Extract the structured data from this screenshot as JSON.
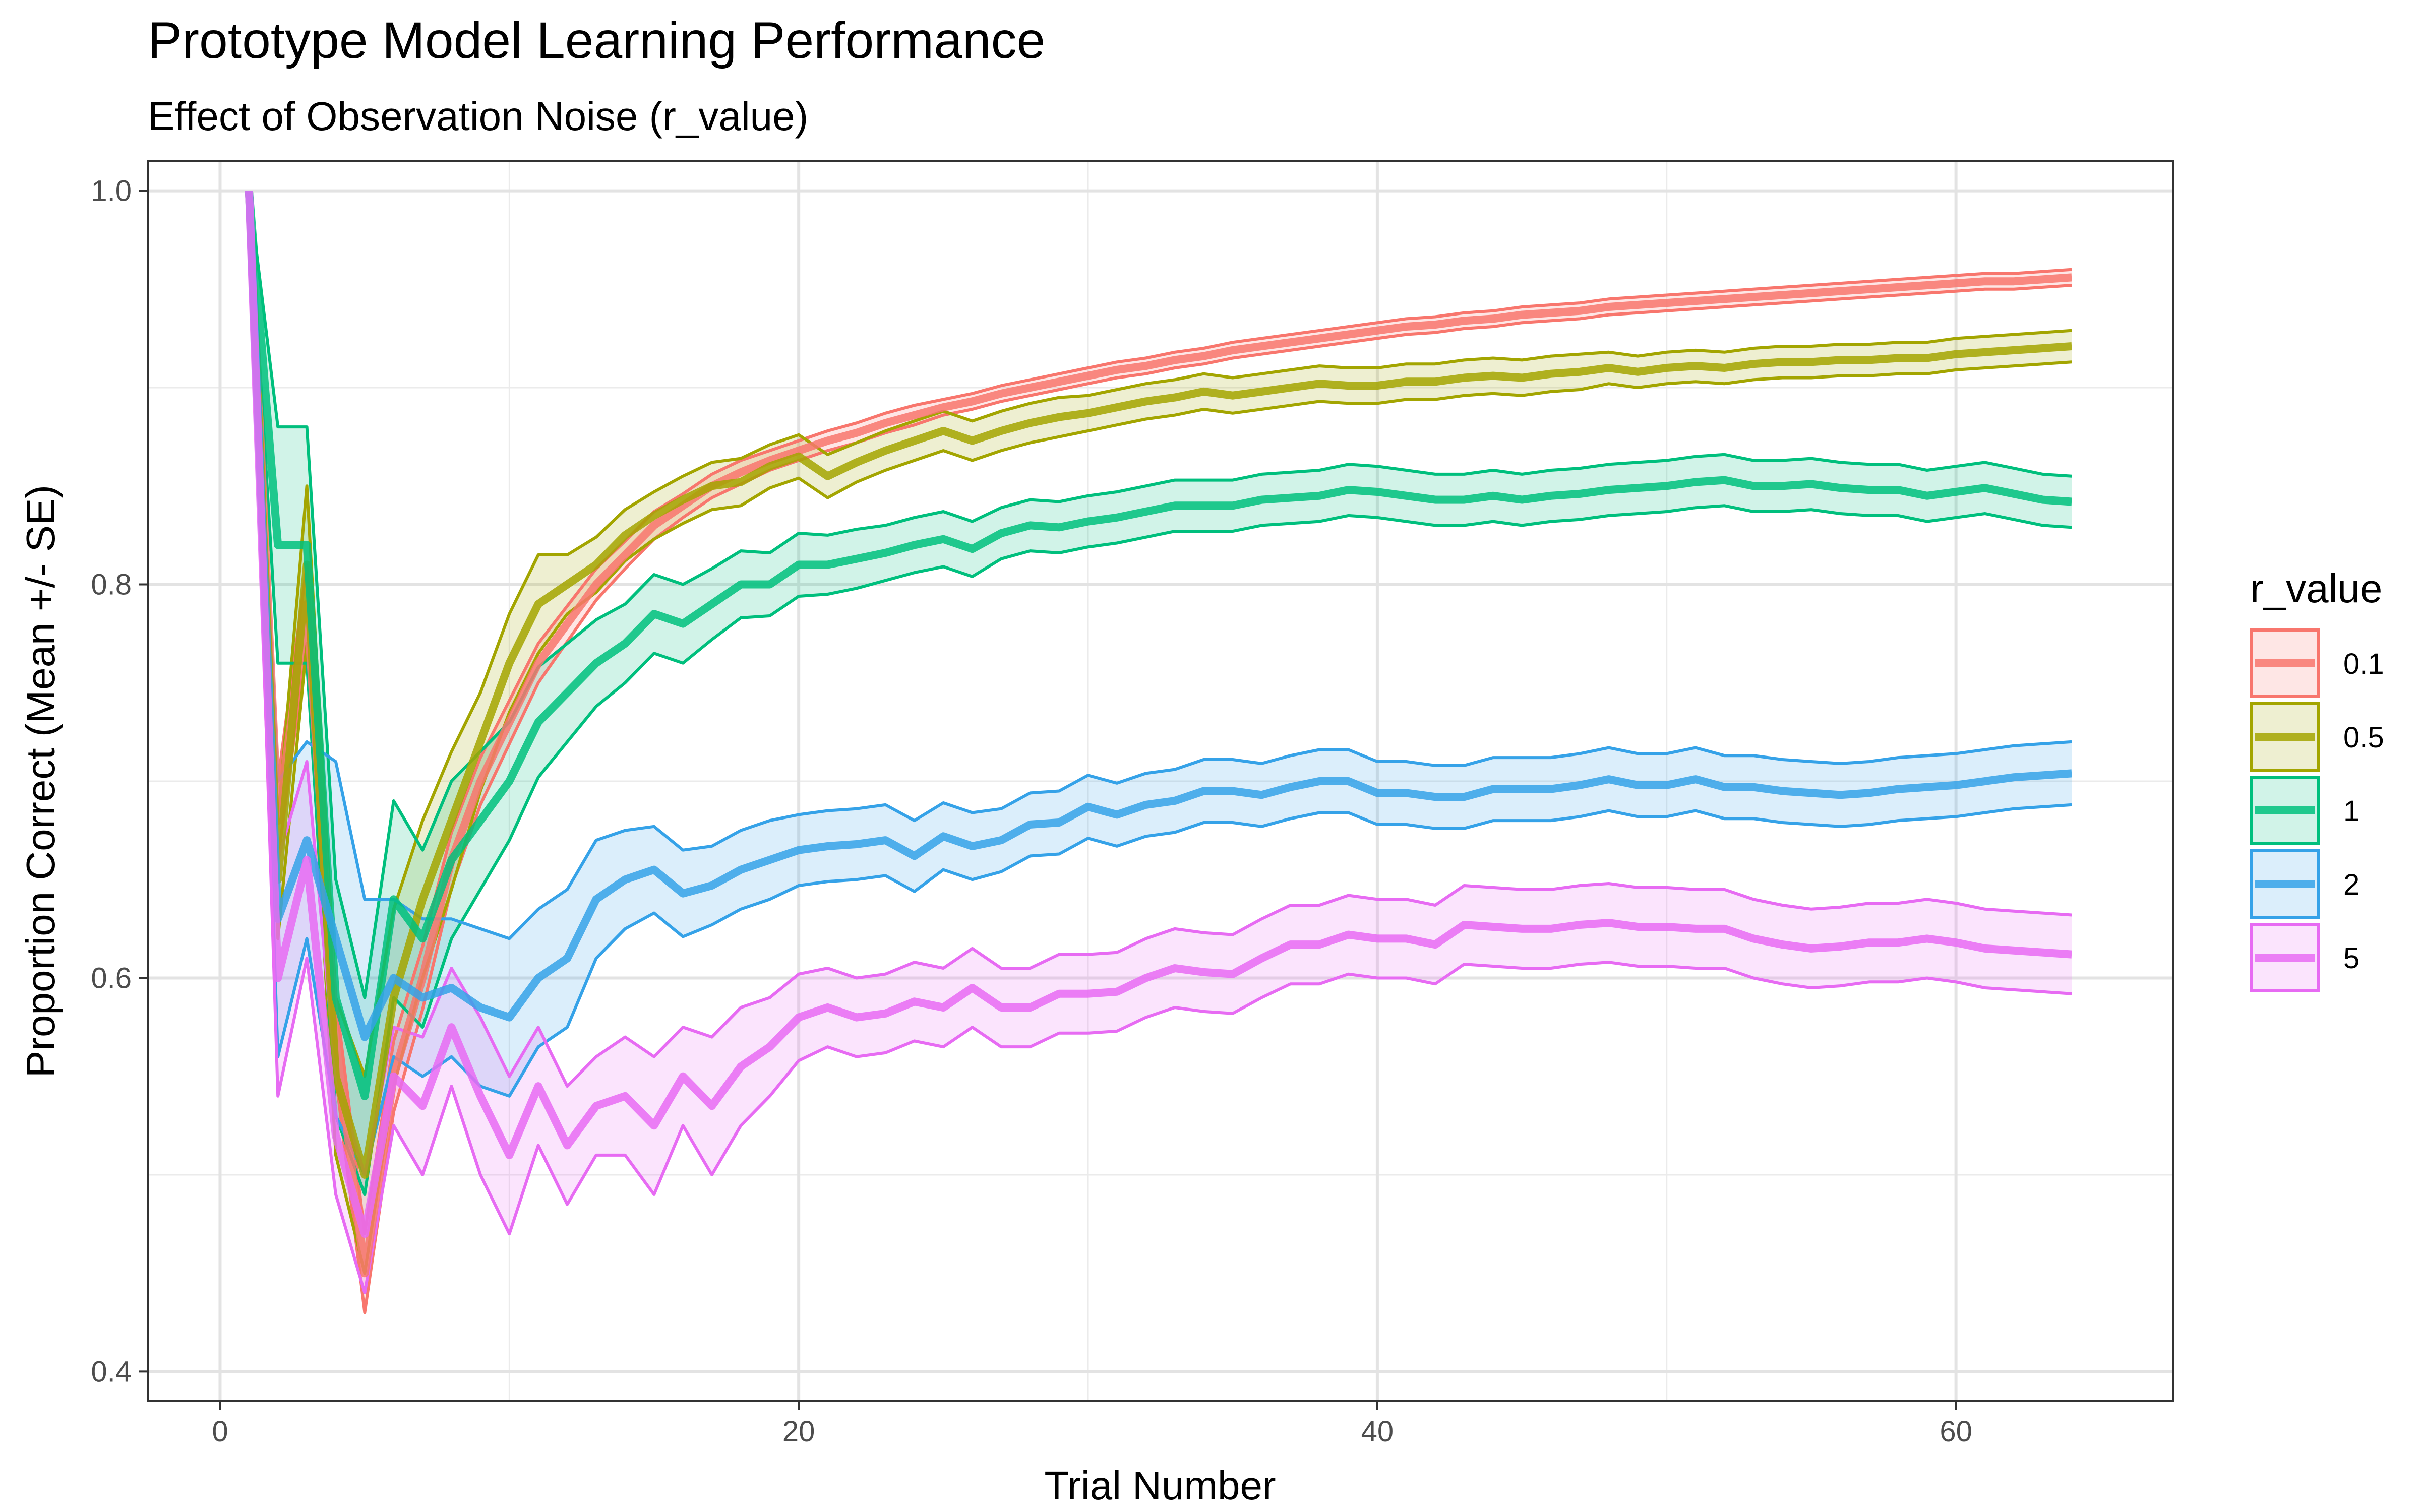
{
  "chart_data": {
    "type": "line",
    "title": "Prototype Model Learning Performance",
    "subtitle": "Effect of Observation Noise (r_value)",
    "xlabel": "Trial Number",
    "ylabel": "Proportion Correct (Mean +/- SE)",
    "xlim": [
      -2.5,
      67.5
    ],
    "ylim": [
      0.385,
      1.015
    ],
    "x_ticks": [
      0,
      20,
      40,
      60
    ],
    "x_tick_labels": [
      "0",
      "20",
      "40",
      "60"
    ],
    "y_ticks": [
      0.4,
      0.6,
      0.8,
      1.0
    ],
    "y_tick_labels": [
      "0.4",
      "0.6",
      "0.8",
      "1.0"
    ],
    "grid": true,
    "legend_title": "r_value",
    "legend_position": "right",
    "x": [
      1,
      2,
      3,
      4,
      5,
      6,
      7,
      8,
      9,
      10,
      11,
      12,
      13,
      14,
      15,
      16,
      17,
      18,
      19,
      20,
      21,
      22,
      23,
      24,
      25,
      26,
      27,
      28,
      29,
      30,
      31,
      32,
      33,
      34,
      35,
      36,
      37,
      38,
      39,
      40,
      41,
      42,
      43,
      44,
      45,
      46,
      47,
      48,
      49,
      50,
      51,
      52,
      53,
      54,
      55,
      56,
      57,
      58,
      59,
      60,
      61,
      62,
      63,
      64
    ],
    "series": [
      {
        "name": "0.1",
        "color": "#F8766D",
        "mean": [
          1.0,
          0.68,
          0.79,
          0.57,
          0.45,
          0.55,
          0.6,
          0.66,
          0.7,
          0.73,
          0.76,
          0.78,
          0.8,
          0.815,
          0.83,
          0.84,
          0.85,
          0.857,
          0.863,
          0.868,
          0.873,
          0.877,
          0.882,
          0.886,
          0.89,
          0.893,
          0.897,
          0.9,
          0.903,
          0.906,
          0.909,
          0.911,
          0.914,
          0.916,
          0.919,
          0.921,
          0.923,
          0.925,
          0.927,
          0.929,
          0.931,
          0.932,
          0.934,
          0.935,
          0.937,
          0.938,
          0.939,
          0.941,
          0.942,
          0.943,
          0.944,
          0.945,
          0.946,
          0.947,
          0.948,
          0.949,
          0.95,
          0.951,
          0.952,
          0.953,
          0.954,
          0.954,
          0.955,
          0.956
        ],
        "se": [
          0.0,
          0.02,
          0.02,
          0.02,
          0.02,
          0.018,
          0.016,
          0.014,
          0.012,
          0.011,
          0.01,
          0.009,
          0.008,
          0.007,
          0.007,
          0.006,
          0.006,
          0.006,
          0.005,
          0.005,
          0.005,
          0.005,
          0.005,
          0.005,
          0.004,
          0.004,
          0.004,
          0.004,
          0.004,
          0.004,
          0.004,
          0.004,
          0.004,
          0.004,
          0.004,
          0.004,
          0.004,
          0.004,
          0.004,
          0.004,
          0.004,
          0.004,
          0.004,
          0.004,
          0.004,
          0.004,
          0.004,
          0.004,
          0.004,
          0.004,
          0.004,
          0.004,
          0.004,
          0.004,
          0.004,
          0.004,
          0.004,
          0.004,
          0.004,
          0.004,
          0.004,
          0.004,
          0.004,
          0.004
        ]
      },
      {
        "name": "0.5",
        "color": "#A3A500",
        "mean": [
          1.0,
          0.65,
          0.81,
          0.55,
          0.5,
          0.59,
          0.64,
          0.68,
          0.72,
          0.76,
          0.79,
          0.8,
          0.81,
          0.825,
          0.835,
          0.843,
          0.85,
          0.852,
          0.86,
          0.865,
          0.855,
          0.862,
          0.868,
          0.873,
          0.878,
          0.873,
          0.878,
          0.882,
          0.885,
          0.887,
          0.89,
          0.893,
          0.895,
          0.898,
          0.896,
          0.898,
          0.9,
          0.902,
          0.901,
          0.901,
          0.903,
          0.903,
          0.905,
          0.906,
          0.905,
          0.907,
          0.908,
          0.91,
          0.908,
          0.91,
          0.911,
          0.91,
          0.912,
          0.913,
          0.913,
          0.914,
          0.914,
          0.915,
          0.915,
          0.917,
          0.918,
          0.919,
          0.92,
          0.921
        ],
        "se": [
          0.0,
          0.03,
          0.04,
          0.04,
          0.05,
          0.045,
          0.04,
          0.035,
          0.025,
          0.025,
          0.025,
          0.015,
          0.014,
          0.013,
          0.012,
          0.012,
          0.012,
          0.012,
          0.011,
          0.011,
          0.011,
          0.01,
          0.01,
          0.01,
          0.01,
          0.01,
          0.01,
          0.01,
          0.01,
          0.009,
          0.009,
          0.009,
          0.009,
          0.009,
          0.009,
          0.009,
          0.009,
          0.009,
          0.009,
          0.009,
          0.009,
          0.009,
          0.009,
          0.009,
          0.009,
          0.009,
          0.009,
          0.008,
          0.008,
          0.008,
          0.008,
          0.008,
          0.008,
          0.008,
          0.008,
          0.008,
          0.008,
          0.008,
          0.008,
          0.008,
          0.008,
          0.008,
          0.008,
          0.008
        ]
      },
      {
        "name": "1",
        "color": "#00BF7D",
        "mean": [
          1.0,
          0.82,
          0.82,
          0.59,
          0.54,
          0.64,
          0.62,
          0.66,
          0.68,
          0.7,
          0.73,
          0.745,
          0.76,
          0.77,
          0.785,
          0.78,
          0.79,
          0.8,
          0.8,
          0.81,
          0.81,
          0.813,
          0.816,
          0.82,
          0.823,
          0.818,
          0.826,
          0.83,
          0.829,
          0.832,
          0.834,
          0.837,
          0.84,
          0.84,
          0.84,
          0.843,
          0.844,
          0.845,
          0.848,
          0.847,
          0.845,
          0.843,
          0.843,
          0.845,
          0.843,
          0.845,
          0.846,
          0.848,
          0.849,
          0.85,
          0.852,
          0.853,
          0.85,
          0.85,
          0.851,
          0.849,
          0.848,
          0.848,
          0.845,
          0.847,
          0.849,
          0.846,
          0.843,
          0.842
        ],
        "se": [
          0.0,
          0.06,
          0.06,
          0.06,
          0.05,
          0.05,
          0.045,
          0.04,
          0.035,
          0.03,
          0.028,
          0.025,
          0.022,
          0.02,
          0.02,
          0.02,
          0.018,
          0.017,
          0.016,
          0.016,
          0.015,
          0.015,
          0.014,
          0.014,
          0.014,
          0.014,
          0.013,
          0.013,
          0.013,
          0.013,
          0.013,
          0.013,
          0.013,
          0.013,
          0.013,
          0.013,
          0.013,
          0.013,
          0.013,
          0.013,
          0.013,
          0.013,
          0.013,
          0.013,
          0.013,
          0.013,
          0.013,
          0.013,
          0.013,
          0.013,
          0.013,
          0.013,
          0.013,
          0.013,
          0.013,
          0.013,
          0.013,
          0.013,
          0.013,
          0.013,
          0.013,
          0.013,
          0.013,
          0.013
        ]
      },
      {
        "name": "2",
        "color": "#35A2E8",
        "mean": [
          1.0,
          0.63,
          0.67,
          0.62,
          0.57,
          0.6,
          0.59,
          0.595,
          0.585,
          0.58,
          0.6,
          0.61,
          0.64,
          0.65,
          0.655,
          0.643,
          0.647,
          0.655,
          0.66,
          0.665,
          0.667,
          0.668,
          0.67,
          0.662,
          0.672,
          0.667,
          0.67,
          0.678,
          0.679,
          0.687,
          0.683,
          0.688,
          0.69,
          0.695,
          0.695,
          0.693,
          0.697,
          0.7,
          0.7,
          0.694,
          0.694,
          0.692,
          0.692,
          0.696,
          0.696,
          0.696,
          0.698,
          0.701,
          0.698,
          0.698,
          0.701,
          0.697,
          0.697,
          0.695,
          0.694,
          0.693,
          0.694,
          0.696,
          0.697,
          0.698,
          0.7,
          0.702,
          0.703,
          0.704
        ],
        "se": [
          0.0,
          0.07,
          0.05,
          0.09,
          0.07,
          0.04,
          0.04,
          0.035,
          0.04,
          0.04,
          0.035,
          0.035,
          0.03,
          0.025,
          0.022,
          0.022,
          0.02,
          0.02,
          0.02,
          0.018,
          0.018,
          0.018,
          0.018,
          0.018,
          0.017,
          0.017,
          0.016,
          0.016,
          0.016,
          0.016,
          0.016,
          0.016,
          0.016,
          0.016,
          0.016,
          0.016,
          0.016,
          0.016,
          0.016,
          0.016,
          0.016,
          0.016,
          0.016,
          0.016,
          0.016,
          0.016,
          0.016,
          0.016,
          0.016,
          0.016,
          0.016,
          0.016,
          0.016,
          0.016,
          0.016,
          0.016,
          0.016,
          0.016,
          0.016,
          0.016,
          0.016,
          0.016,
          0.016,
          0.016
        ]
      },
      {
        "name": "5",
        "color": "#E76BF3",
        "mean": [
          1.0,
          0.6,
          0.66,
          0.52,
          0.47,
          0.55,
          0.535,
          0.575,
          0.54,
          0.51,
          0.545,
          0.515,
          0.535,
          0.54,
          0.525,
          0.55,
          0.535,
          0.555,
          0.565,
          0.58,
          0.585,
          0.58,
          0.582,
          0.588,
          0.585,
          0.595,
          0.585,
          0.585,
          0.592,
          0.592,
          0.593,
          0.6,
          0.605,
          0.603,
          0.602,
          0.61,
          0.617,
          0.617,
          0.622,
          0.62,
          0.62,
          0.617,
          0.627,
          0.626,
          0.625,
          0.625,
          0.627,
          0.628,
          0.626,
          0.626,
          0.625,
          0.625,
          0.62,
          0.617,
          0.615,
          0.616,
          0.618,
          0.618,
          0.62,
          0.618,
          0.615,
          0.614,
          0.613,
          0.612
        ],
        "se": [
          0.0,
          0.06,
          0.05,
          0.03,
          0.03,
          0.025,
          0.035,
          0.03,
          0.04,
          0.04,
          0.03,
          0.03,
          0.025,
          0.03,
          0.035,
          0.025,
          0.035,
          0.03,
          0.025,
          0.022,
          0.02,
          0.02,
          0.02,
          0.02,
          0.02,
          0.02,
          0.02,
          0.02,
          0.02,
          0.02,
          0.02,
          0.02,
          0.02,
          0.02,
          0.02,
          0.02,
          0.02,
          0.02,
          0.02,
          0.02,
          0.02,
          0.02,
          0.02,
          0.02,
          0.02,
          0.02,
          0.02,
          0.02,
          0.02,
          0.02,
          0.02,
          0.02,
          0.02,
          0.02,
          0.02,
          0.02,
          0.02,
          0.02,
          0.02,
          0.02,
          0.02,
          0.02,
          0.02,
          0.02
        ]
      }
    ]
  }
}
